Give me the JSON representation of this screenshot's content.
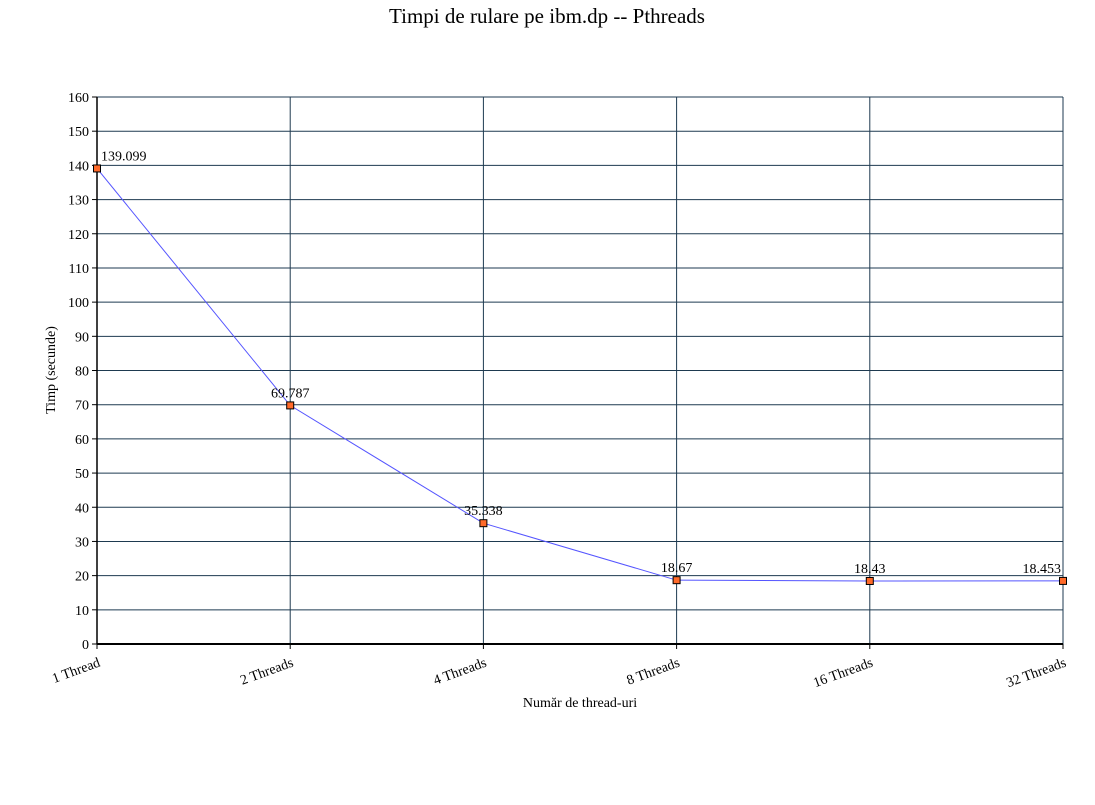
{
  "chart_data": {
    "type": "line",
    "title": "Timpi de rulare pe ibm.dp -- Pthreads",
    "xlabel": "Număr de thread-uri",
    "ylabel": "Timp (secunde)",
    "categories": [
      "1 Thread",
      "2 Threads",
      "4 Threads",
      "8 Threads",
      "16 Threads",
      "32 Threads"
    ],
    "series": [
      {
        "values": [
          139.099,
          69.787,
          35.338,
          18.67,
          18.43,
          18.453
        ]
      }
    ],
    "data_labels": [
      "139.099",
      "69.787",
      "35.338",
      "18.67",
      "18.43",
      "18.453"
    ],
    "ylim": [
      0,
      160
    ],
    "ytick_step": 10,
    "grid": true,
    "colors": {
      "line": "#5555ff",
      "marker_fill": "#ff6a2a",
      "marker_stroke": "#000000",
      "grid": "#1e3a50"
    }
  }
}
